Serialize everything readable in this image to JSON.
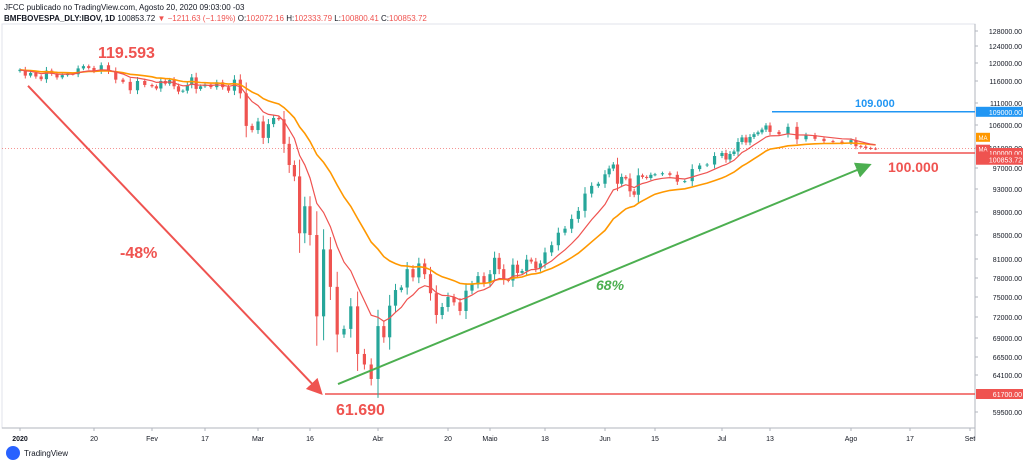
{
  "header": {
    "published": "JFCC publicado no TradingView.com, Agosto 20, 2020 09:03:00 -03",
    "symbol": "BMFBOVESPA_DLY:IBOV, 1D",
    "last": "100853.72",
    "change": "▼ −1211.63 (−1.19%)",
    "ohlc_o_label": "O:",
    "ohlc_o": "102072.16",
    "ohlc_h_label": "H:",
    "ohlc_h": "102333.79",
    "ohlc_l_label": "L:",
    "ohlc_l": "100800.41",
    "ohlc_c_label": "C:",
    "ohlc_c": "100853.72"
  },
  "footer": {
    "brand": "TradingView"
  },
  "chart_data": {
    "type": "candlestick",
    "title": "",
    "xlabel": "",
    "ylabel": "",
    "ylim": [
      56800,
      129500
    ],
    "colors": {
      "up": "#26a69a",
      "down": "#ef5350",
      "ema_fast": "#ef5350",
      "ema_slow": "#ff9800",
      "arrow_down": "#ef5350",
      "arrow_up": "#4caf50",
      "resistance": "#2196f3",
      "support": "#ef5350"
    },
    "yticks": [
      59500,
      61700,
      64100,
      66500,
      69000,
      72000,
      75000,
      78000,
      81000,
      85000,
      89000,
      93000,
      97000,
      100000,
      101000,
      106000,
      111000,
      116000,
      120000,
      124000,
      128000
    ],
    "ytick_labels": [
      "59500.00",
      "61700.00",
      "64100.00",
      "66500.00",
      "69000.00",
      "72000.00",
      "75000.00",
      "78000.00",
      "81000.00",
      "85000.00",
      "89000.00",
      "93000.00",
      "97000.00",
      "100000.00",
      "101000.00",
      "106000.00",
      "111000.00",
      "116000.00",
      "120000.00",
      "124000.00",
      "128000.00"
    ],
    "x_labels": [
      "2020",
      "20",
      "Fev",
      "17",
      "Mar",
      "16",
      "Abr",
      "20",
      "Maio",
      "18",
      "Jun",
      "15",
      "Jul",
      "13",
      "Ago",
      "17",
      "Set"
    ],
    "x_label_days": [
      0,
      14,
      22,
      34,
      43,
      53,
      63,
      75,
      82,
      94,
      103,
      115,
      124,
      136,
      145,
      157,
      166
    ],
    "closes": [
      118500,
      117200,
      117800,
      117000,
      116400,
      118300,
      117600,
      116800,
      117300,
      117600,
      117500,
      118800,
      119300,
      118900,
      118200,
      119500,
      118200,
      116300,
      115800,
      113900,
      116000,
      115100,
      114800,
      114300,
      116000,
      115400,
      116200,
      114800,
      113600,
      113800,
      115100,
      116800,
      114200,
      114800,
      115200,
      114600,
      115700,
      114600,
      113800,
      116300,
      113200,
      105800,
      104900,
      106800,
      103200,
      106200,
      107600,
      107300,
      101900,
      97600,
      95400,
      85300,
      90000,
      85000,
      72100,
      82600,
      76600,
      69500,
      70300,
      73600,
      66900,
      65500,
      63600,
      70700,
      69100,
      73700,
      76100,
      76500,
      79400,
      78100,
      80300,
      78600,
      75600,
      72300,
      73500,
      75000,
      74200,
      72900,
      76000,
      77000,
      78300,
      77200,
      78600,
      81200,
      79400,
      77700,
      77600,
      80100,
      78800,
      79100,
      80900,
      80600,
      79500,
      80300,
      82100,
      83300,
      85400,
      86100,
      87800,
      89200,
      92200,
      93600,
      94000,
      95800,
      96900,
      97700,
      94000,
      95300,
      95000,
      92600,
      92000,
      95600,
      95300,
      95100,
      95700,
      95800,
      96000,
      95700,
      94400,
      94500,
      96800,
      97500,
      97700,
      99400,
      100000,
      98700,
      99800,
      100300,
      102300,
      103300,
      102200,
      103400,
      104000,
      104400,
      105000,
      105900,
      104500,
      104000,
      105600,
      102900,
      103800,
      103000,
      102500,
      102400,
      102100,
      102700,
      101400,
      101300,
      101000,
      100900,
      100850
    ],
    "high": 119593,
    "low": 61690,
    "annotations": [
      {
        "text": "119.593",
        "color": "#ef5350"
      },
      {
        "text": "-48%",
        "color": "#ef5350"
      },
      {
        "text": "61.690",
        "color": "#ef5350"
      },
      {
        "text": "68%",
        "color": "#4caf50"
      },
      {
        "text": "109.000",
        "color": "#2196f3"
      },
      {
        "text": "100.000",
        "color": "#ef5350"
      }
    ],
    "hlines": [
      {
        "value": 109000,
        "label": "109000.00",
        "color": "#2196f3"
      },
      {
        "value": 61700,
        "label": "61700.00",
        "color": "#ef5350"
      },
      {
        "value": 100000,
        "label": "100000.00",
        "color": "#ef5350"
      }
    ],
    "price_tag": {
      "value": 100853.72,
      "label": "100853.72",
      "color": "#ef5350"
    },
    "ma_tags": [
      {
        "text": "MA",
        "color": "#ff9800"
      },
      {
        "text": "MA",
        "color": "#ef5350"
      }
    ]
  }
}
